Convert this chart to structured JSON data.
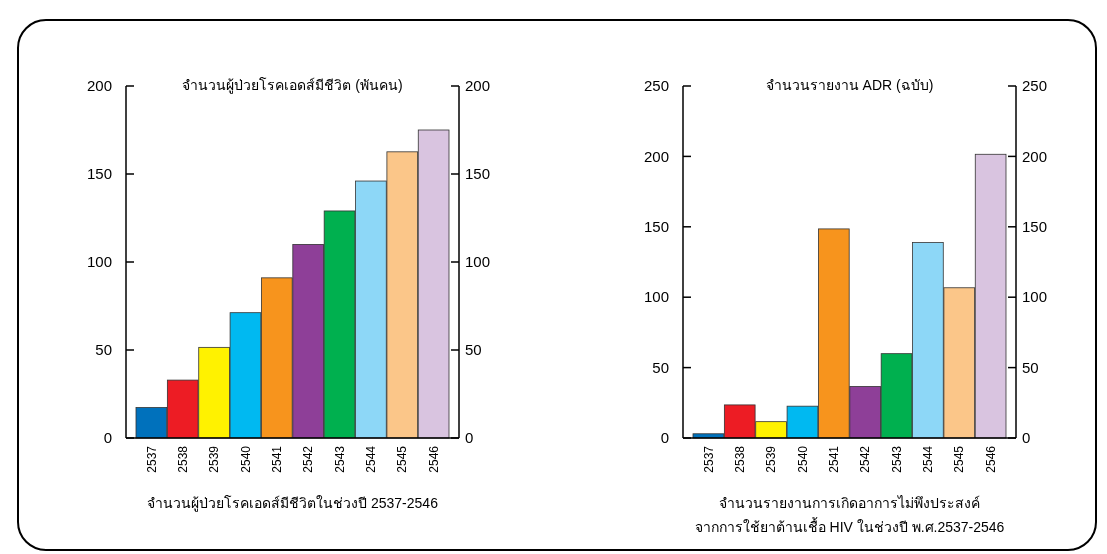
{
  "chart_data": [
    {
      "type": "bar",
      "title": "จำนวนผู้ป่วยโรคเอดส์มีชีวิต (พันคน)",
      "xlabel": "จำนวนผู้ป่วยโรคเอดส์มีชีวิตในช่วงปี 2537-2546",
      "categories": [
        "2537",
        "2538",
        "2539",
        "2540",
        "2541",
        "2542",
        "2543",
        "2544",
        "2545",
        "2546"
      ],
      "values": [
        17.3,
        32.9,
        51.5,
        71.2,
        91,
        110,
        129,
        146,
        162.6,
        175
      ],
      "colors": [
        "#0071bc",
        "#ed1c24",
        "#fff200",
        "#00b9f1",
        "#f7941d",
        "#8e3f98",
        "#00b04f",
        "#8dd7f7",
        "#fbc689",
        "#d9c4e0"
      ],
      "ylim": [
        0,
        200
      ],
      "yticks": [
        0,
        50,
        100,
        150,
        200
      ],
      "y2lim": [
        0,
        200
      ],
      "y2ticks": [
        0,
        50,
        100,
        150,
        200
      ],
      "grid": false
    },
    {
      "type": "bar",
      "title": "จำนวนรายงาน ADR (ฉบับ)",
      "xlabel": "จำนวนรายงานการเกิดอาการไม่พึงประสงค์\nจากการใช้ยาต้านเชื้อ HIV ในช่วงปี พ.ศ.2537-2546",
      "categories": [
        "2537",
        "2538",
        "2539",
        "2540",
        "2541",
        "2542",
        "2543",
        "2544",
        "2545",
        "2546"
      ],
      "values": [
        3,
        23.5,
        11.6,
        22.6,
        148.5,
        36.6,
        59.9,
        138.8,
        106.7,
        201.5
      ],
      "colors": [
        "#0071bc",
        "#ed1c24",
        "#fff200",
        "#00b9f1",
        "#f7941d",
        "#8e3f98",
        "#00b04f",
        "#8dd7f7",
        "#fbc689",
        "#d9c4e0"
      ],
      "ylim": [
        0,
        250
      ],
      "yticks": [
        0,
        50,
        100,
        150,
        200,
        250
      ],
      "y2lim": [
        0,
        250
      ],
      "y2ticks": [
        0,
        50,
        100,
        150,
        200,
        250
      ],
      "grid": false
    }
  ]
}
